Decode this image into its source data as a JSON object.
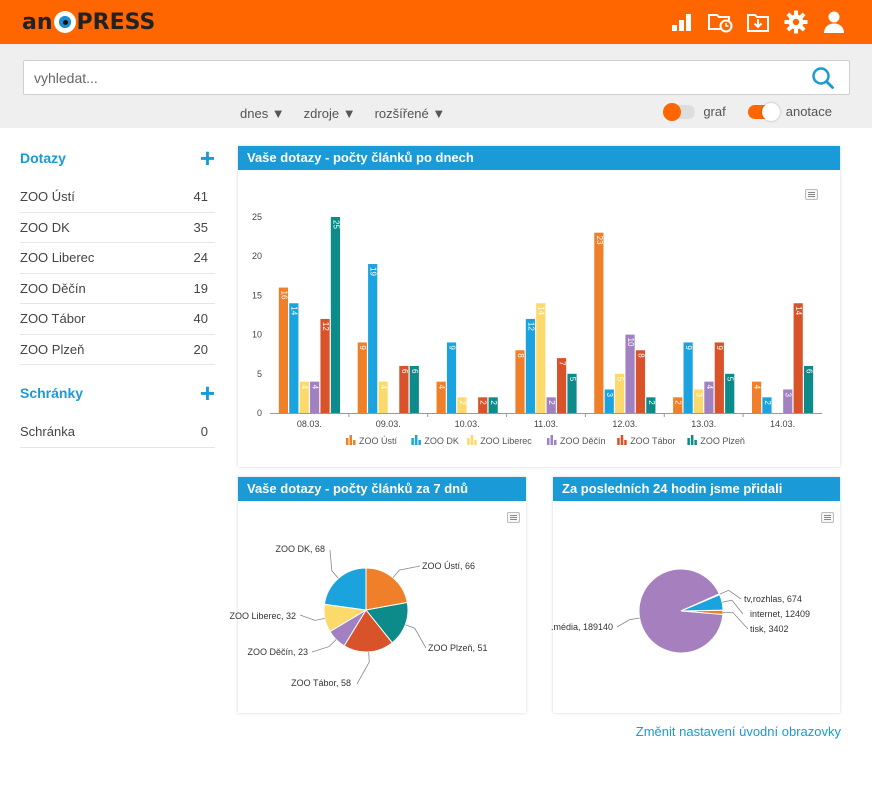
{
  "header": {
    "logo_left": "an",
    "logo_right": "PRESS",
    "icons": [
      "signal-icon",
      "clock-folder-icon",
      "download-icon",
      "gear-icon",
      "user-icon"
    ]
  },
  "search": {
    "placeholder": "vyhledat...",
    "value": ""
  },
  "filters": {
    "today": "dnes ▼",
    "sources": "zdroje ▼",
    "advanced": "rozšířené ▼"
  },
  "toggles": {
    "graph_label": "graf",
    "annotation_label": "anotace",
    "graph_on": false,
    "annotation_on": true
  },
  "sidebar": {
    "queries_title": "Dotazy",
    "queries": [
      {
        "label": "ZOO Ústí",
        "count": "41"
      },
      {
        "label": "ZOO DK",
        "count": "35"
      },
      {
        "label": "ZOO Liberec",
        "count": "24"
      },
      {
        "label": "ZOO Děčín",
        "count": "19"
      },
      {
        "label": "ZOO Tábor",
        "count": "40"
      },
      {
        "label": "ZOO Plzeň",
        "count": "20"
      }
    ],
    "boxes_title": "Schránky",
    "boxes": [
      {
        "label": "Schránka",
        "count": "0"
      }
    ]
  },
  "panels": {
    "bar_title": "Vaše dotazy - počty článků po dnech",
    "pie1_title": "Vaše dotazy - počty článků za 7 dnů",
    "pie2_title": "Za posledních 24 hodin jsme přidali"
  },
  "footer": {
    "settings_link": "Změnit nastavení úvodní obrazovky"
  },
  "colors": {
    "accent": "#ff6600",
    "blue": "#1a9ad6",
    "series": [
      "#f07f2a",
      "#1ba3dd",
      "#fbd96b",
      "#a281c2",
      "#d9532a",
      "#0d8b8a"
    ],
    "media": [
      "#a67fbf",
      "#1ba3dd",
      "#f07f2a"
    ]
  },
  "chart_data": [
    {
      "type": "bar",
      "categories": [
        "08.03.",
        "09.03.",
        "10.03.",
        "11.03.",
        "12.03.",
        "13.03.",
        "14.03."
      ],
      "ylim": [
        0,
        25
      ],
      "yticks": [
        0,
        5,
        10,
        15,
        20,
        25
      ],
      "series": [
        {
          "name": "ZOO Ústí",
          "values": [
            16,
            9,
            4,
            8,
            23,
            2,
            4
          ]
        },
        {
          "name": "ZOO DK",
          "values": [
            14,
            19,
            9,
            12,
            3,
            9,
            2
          ]
        },
        {
          "name": "ZOO Liberec",
          "values": [
            4,
            4,
            2,
            14,
            5,
            3,
            0
          ]
        },
        {
          "name": "ZOO Děčín",
          "values": [
            4,
            0,
            0,
            2,
            10,
            4,
            3
          ]
        },
        {
          "name": "ZOO Tábor",
          "values": [
            12,
            6,
            2,
            7,
            8,
            9,
            14
          ]
        },
        {
          "name": "ZOO Plzeň",
          "values": [
            25,
            6,
            2,
            5,
            2,
            5,
            6
          ]
        }
      ]
    },
    {
      "type": "pie",
      "slices": [
        {
          "label": "ZOO Ústí, 66",
          "value": 66
        },
        {
          "label": "ZOO Plzeň, 51",
          "value": 51
        },
        {
          "label": "ZOO Tábor, 58",
          "value": 58
        },
        {
          "label": "ZOO Děčín, 23",
          "value": 23
        },
        {
          "label": "ZOO Liberec, 32",
          "value": 32
        },
        {
          "label": "ZOO DK, 68",
          "value": 68
        }
      ]
    },
    {
      "type": "pie",
      "slices": [
        {
          "label": "tisk, 3402",
          "value": 3402
        },
        {
          "label": ".média, 189140",
          "value": 189140
        },
        {
          "label": "tv,rozhlas, 674",
          "value": 674
        },
        {
          "label": "internet, 12409",
          "value": 12409
        }
      ]
    }
  ]
}
